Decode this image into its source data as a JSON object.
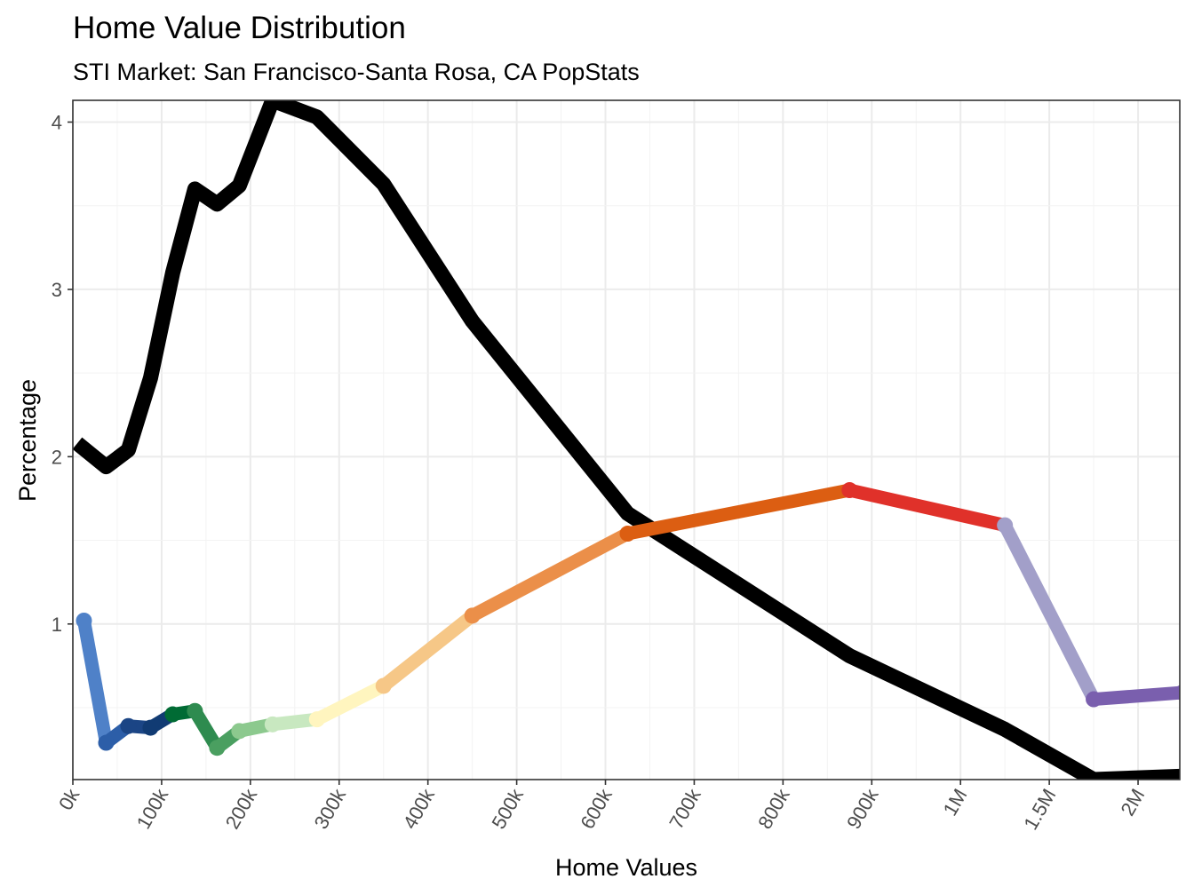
{
  "chart_data": {
    "type": "line",
    "title": "Home Value Distribution",
    "subtitle": "STI Market: San Francisco-Santa Rosa, CA PopStats",
    "xlabel": "Home Values",
    "ylabel": "Percentage",
    "ylim": [
      0.07,
      4.13
    ],
    "y_ticks": [
      1,
      2,
      3,
      4
    ],
    "x_ticks": [
      "0k",
      "100k",
      "200k",
      "300k",
      "400k",
      "500k",
      "600k",
      "700k",
      "800k",
      "900k",
      "1M",
      "1.5M",
      "2M"
    ],
    "x_tick_positions": [
      0,
      100,
      200,
      300,
      400,
      500,
      600,
      700,
      800,
      900,
      1000,
      1100,
      1200
    ],
    "xlim": [
      0,
      1247
    ],
    "grid": true,
    "legend": "none",
    "series": [
      {
        "color": "#000000",
        "points": [
          [
            5,
            2.08
          ],
          [
            37.5,
            1.94
          ],
          [
            62.5,
            2.04
          ],
          [
            87.5,
            2.47
          ],
          [
            112.5,
            3.1
          ],
          [
            137.5,
            3.6
          ],
          [
            162.5,
            3.51
          ],
          [
            187.5,
            3.62
          ],
          [
            225,
            4.13
          ],
          [
            275,
            4.03
          ],
          [
            350,
            3.63
          ],
          [
            450,
            2.81
          ],
          [
            625,
            1.66
          ],
          [
            875,
            0.81
          ],
          [
            1050,
            0.37
          ],
          [
            1150,
            0.07
          ],
          [
            1250,
            0.09
          ]
        ]
      },
      {
        "colored": true,
        "points": [
          [
            12.5,
            1.02
          ],
          [
            37.5,
            0.29
          ],
          [
            62.5,
            0.39
          ],
          [
            87.5,
            0.38
          ],
          [
            112.5,
            0.46
          ],
          [
            137.5,
            0.48
          ],
          [
            162.5,
            0.26
          ],
          [
            187.5,
            0.36
          ],
          [
            225,
            0.4
          ],
          [
            275,
            0.43
          ],
          [
            350,
            0.63
          ],
          [
            450,
            1.05
          ],
          [
            625,
            1.54
          ],
          [
            875,
            1.8
          ],
          [
            1050,
            1.59
          ],
          [
            1150,
            0.55
          ],
          [
            1250,
            0.59
          ]
        ],
        "segment_colors": [
          "#4f81c8",
          "#2c5ea8",
          "#1b4585",
          "#113b73",
          "#006b34",
          "#2e8b4f",
          "#4a9f60",
          "#8cc98e",
          "#c8e8c0",
          "#fff5bf",
          "#f6c787",
          "#eb8f49",
          "#dc5e12",
          "#e0312a",
          "#a29fc9",
          "#7a5fae"
        ]
      }
    ]
  }
}
